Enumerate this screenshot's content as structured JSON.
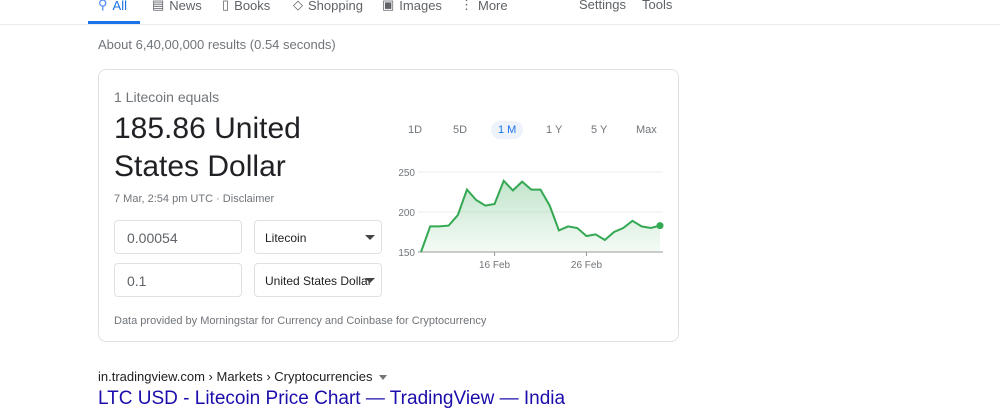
{
  "nav": {
    "tabs": [
      {
        "label": "All",
        "icon": "search-icon"
      },
      {
        "label": "News",
        "icon": "news-icon"
      },
      {
        "label": "Books",
        "icon": "book-icon"
      },
      {
        "label": "Shopping",
        "icon": "tag-icon"
      },
      {
        "label": "Images",
        "icon": "image-icon"
      },
      {
        "label": "More",
        "icon": "more-vert-icon"
      }
    ],
    "settings": "Settings",
    "tools": "Tools",
    "accent": "#1a73e8"
  },
  "stats": "About 6,40,00,000 results (0.54 seconds)",
  "converter": {
    "equals": "1 Litecoin equals",
    "value": "185.86 United States Dollar",
    "date": "7 Mar, 2:54 pm UTC · Disclaimer",
    "from_amount": "0.00054",
    "from_currency": "Litecoin",
    "to_amount": "0.1",
    "to_currency": "United States Dollar",
    "source": "Data provided by Morningstar for Currency and Coinbase for Cryptocurrency",
    "ranges": [
      "1D",
      "5D",
      "1 M",
      "1 Y",
      "5 Y",
      "Max"
    ],
    "active_range": "1 M"
  },
  "chart_data": {
    "type": "area",
    "color": "#34a853",
    "x": [
      "8 Feb",
      "9 Feb",
      "10 Feb",
      "11 Feb",
      "12 Feb",
      "13 Feb",
      "14 Feb",
      "15 Feb",
      "16 Feb",
      "17 Feb",
      "18 Feb",
      "19 Feb",
      "20 Feb",
      "21 Feb",
      "22 Feb",
      "23 Feb",
      "24 Feb",
      "25 Feb",
      "26 Feb",
      "27 Feb",
      "28 Feb",
      "1 Mar",
      "2 Mar",
      "3 Mar",
      "4 Mar",
      "5 Mar",
      "6 Mar"
    ],
    "values": [
      150,
      182,
      182,
      183,
      196,
      228,
      215,
      208,
      210,
      239,
      227,
      238,
      228,
      228,
      208,
      177,
      182,
      180,
      170,
      172,
      165,
      175,
      180,
      189,
      182,
      180,
      183
    ],
    "yticks": [
      150,
      200,
      250
    ],
    "ylim": [
      150,
      250
    ],
    "xticks": [
      "16 Feb",
      "26 Feb"
    ],
    "grid": true
  },
  "result": {
    "cite": "in.tradingview.com › Markets › Cryptocurrencies",
    "title": "LTC USD - Litecoin Price Chart — TradingView — India"
  }
}
